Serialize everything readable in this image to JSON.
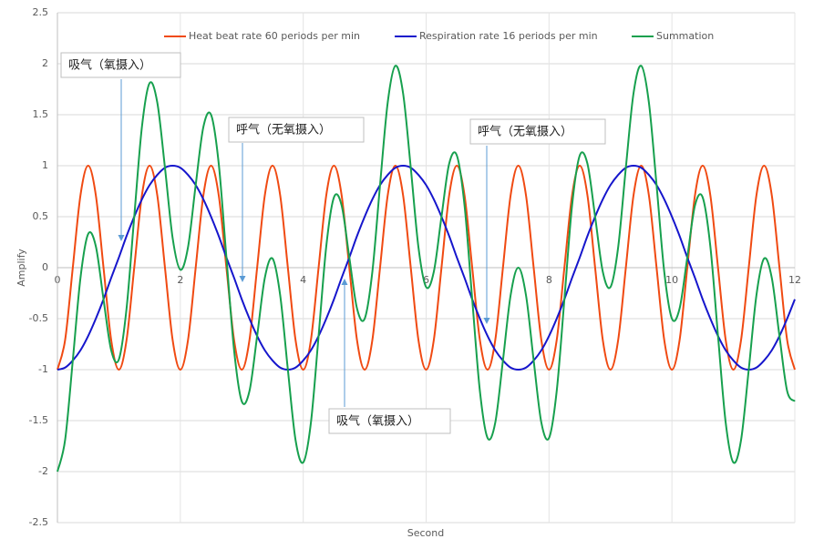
{
  "chart_data": {
    "type": "line",
    "xlabel": "Second",
    "ylabel": "Amplify",
    "x": [
      0,
      0.125,
      0.25,
      0.375,
      0.5,
      0.625,
      0.75,
      0.875,
      1,
      1.125,
      1.25,
      1.375,
      1.5,
      1.625,
      1.75,
      1.875,
      2,
      2.125,
      2.25,
      2.375,
      2.5,
      2.625,
      2.75,
      2.875,
      3,
      3.125,
      3.25,
      3.375,
      3.5,
      3.625,
      3.75,
      3.875,
      4,
      4.125,
      4.25,
      4.375,
      4.5,
      4.625,
      4.75,
      4.875,
      5,
      5.125,
      5.25,
      5.375,
      5.5,
      5.625,
      5.75,
      5.875,
      6,
      6.125,
      6.25,
      6.375,
      6.5,
      6.625,
      6.75,
      6.875,
      7,
      7.125,
      7.25,
      7.375,
      7.5,
      7.625,
      7.75,
      7.875,
      8,
      8.125,
      8.25,
      8.375,
      8.5,
      8.625,
      8.75,
      8.875,
      9,
      9.125,
      9.25,
      9.375,
      9.5,
      9.625,
      9.75,
      9.875,
      10,
      10.125,
      10.25,
      10.375,
      10.5,
      10.625,
      10.75,
      10.875,
      11,
      11.125,
      11.25,
      11.375,
      11.5,
      11.625,
      11.75,
      11.875,
      12
    ],
    "series": [
      {
        "name": "Heat beat rate 60 periods per min",
        "color": "#f04a12",
        "values": [
          -1,
          -0.71,
          0,
          0.71,
          1,
          0.71,
          0,
          -0.71,
          -1,
          -0.71,
          0,
          0.71,
          1,
          0.71,
          0,
          -0.71,
          -1,
          -0.71,
          0,
          0.71,
          1,
          0.71,
          0,
          -0.71,
          -1,
          -0.71,
          0,
          0.71,
          1,
          0.71,
          0,
          -0.71,
          -1,
          -0.71,
          0,
          0.71,
          1,
          0.71,
          0,
          -0.71,
          -1,
          -0.71,
          0,
          0.71,
          1,
          0.71,
          0,
          -0.71,
          -1,
          -0.71,
          0,
          0.71,
          1,
          0.71,
          0,
          -0.71,
          -1,
          -0.71,
          0,
          0.71,
          1,
          0.71,
          0,
          -0.71,
          -1,
          -0.71,
          0,
          0.71,
          1,
          0.71,
          0,
          -0.71,
          -1,
          -0.71,
          0,
          0.71,
          1,
          0.71,
          0,
          -0.71,
          -1,
          -0.71,
          0,
          0.71,
          1,
          0.71,
          0,
          -0.71,
          -1,
          -0.71,
          0,
          0.71,
          1,
          0.71,
          0,
          -0.71,
          -1
        ]
      },
      {
        "name": "Respiration rate 16 periods per min",
        "color": "#1616cc",
        "values": [
          -1,
          -0.98,
          -0.91,
          -0.81,
          -0.67,
          -0.5,
          -0.31,
          -0.1,
          0.1,
          0.31,
          0.5,
          0.67,
          0.81,
          0.91,
          0.98,
          1,
          0.98,
          0.91,
          0.81,
          0.67,
          0.5,
          0.31,
          0.1,
          -0.1,
          -0.31,
          -0.5,
          -0.67,
          -0.81,
          -0.91,
          -0.98,
          -1,
          -0.98,
          -0.91,
          -0.81,
          -0.67,
          -0.5,
          -0.31,
          -0.1,
          0.1,
          0.31,
          0.5,
          0.67,
          0.81,
          0.91,
          0.98,
          1,
          0.98,
          0.91,
          0.81,
          0.67,
          0.5,
          0.31,
          0.1,
          -0.1,
          -0.31,
          -0.5,
          -0.67,
          -0.81,
          -0.91,
          -0.98,
          -1,
          -0.98,
          -0.91,
          -0.81,
          -0.67,
          -0.5,
          -0.31,
          -0.1,
          0.1,
          0.31,
          0.5,
          0.67,
          0.81,
          0.91,
          0.98,
          1,
          0.98,
          0.91,
          0.81,
          0.67,
          0.5,
          0.31,
          0.1,
          -0.1,
          -0.31,
          -0.5,
          -0.67,
          -0.81,
          -0.91,
          -0.98,
          -1,
          -0.98,
          -0.91,
          -0.81,
          -0.67,
          -0.5,
          -0.31
        ]
      },
      {
        "name": "Summation",
        "color": "#17a04e",
        "values": [
          -2,
          -1.69,
          -0.91,
          -0.1,
          0.33,
          0.21,
          -0.31,
          -0.81,
          -0.9,
          -0.4,
          0.5,
          1.38,
          1.81,
          1.62,
          0.98,
          0.29,
          -0.02,
          0.2,
          0.81,
          1.38,
          1.5,
          1.02,
          0.1,
          -0.81,
          -1.31,
          -1.21,
          -0.67,
          -0.1,
          0.09,
          -0.27,
          -1,
          -1.69,
          -1.91,
          -1.52,
          -0.67,
          0.21,
          0.69,
          0.61,
          0.1,
          -0.4,
          -0.5,
          -0.04,
          0.81,
          1.62,
          1.98,
          1.71,
          0.98,
          0.2,
          -0.19,
          -0.04,
          0.5,
          1.02,
          1.1,
          0.61,
          -0.31,
          -1.21,
          -1.67,
          -1.52,
          -0.91,
          -0.27,
          0,
          -0.27,
          -0.91,
          -1.52,
          -1.67,
          -1.21,
          -0.31,
          0.61,
          1.1,
          1.02,
          0.5,
          -0.04,
          -0.19,
          0.2,
          0.98,
          1.71,
          1.98,
          1.62,
          0.81,
          -0.04,
          -0.5,
          -0.4,
          0.1,
          0.61,
          0.69,
          0.21,
          -0.67,
          -1.52,
          -1.91,
          -1.69,
          -1,
          -0.27,
          0.09,
          -0.1,
          -0.67,
          -1.21,
          -1.31
        ]
      }
    ],
    "xlim": [
      0,
      12
    ],
    "xticks": [
      0,
      2,
      4,
      6,
      8,
      10,
      12
    ],
    "ylim": [
      -2.5,
      2.5
    ],
    "yticks": [
      -2.5,
      -2,
      -1.5,
      -1,
      -0.5,
      0,
      0.5,
      1,
      1.5,
      2,
      2.5
    ],
    "grid": true,
    "legend": "top",
    "annotations": [
      {
        "text": "吸气（氧摄入）"
      },
      {
        "text": "呼气（无氧摄入）"
      },
      {
        "text": "呼气（无氧摄入）"
      },
      {
        "text": "吸气（氧摄入）"
      }
    ]
  }
}
